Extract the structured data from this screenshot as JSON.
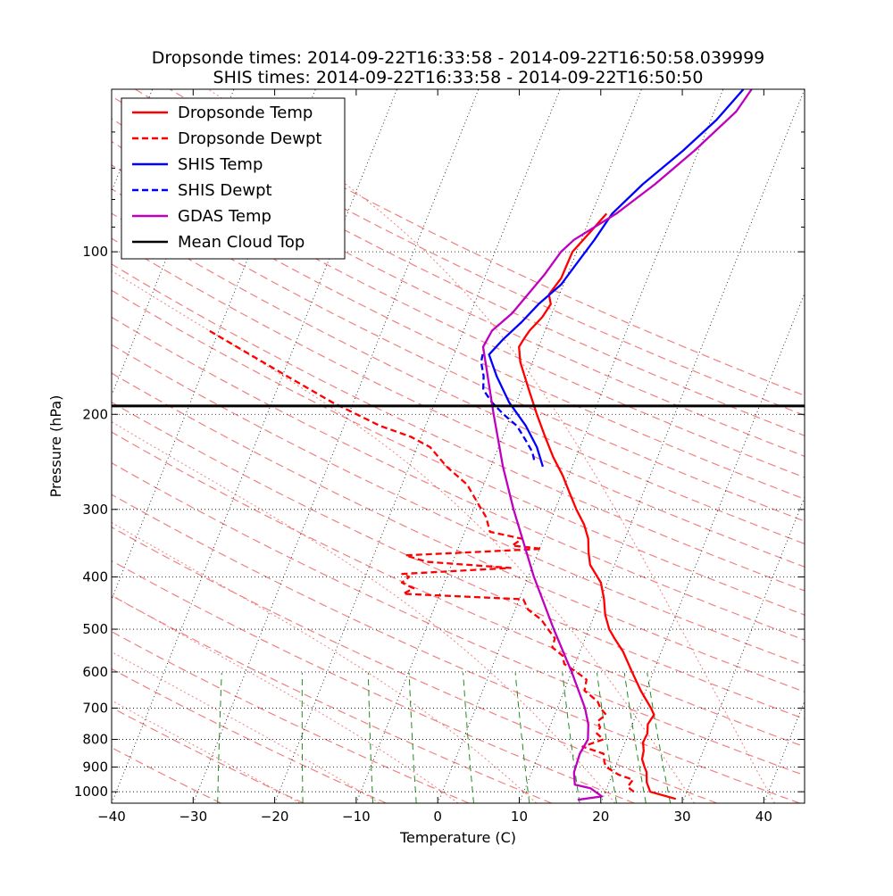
{
  "chart_data": {
    "type": "line",
    "subtype": "skew-T log-P diagram",
    "title_line1": "Dropsonde times: 2014-09-22T16:33:58 - 2014-09-22T16:50:58.039999",
    "title_line2": "SHIS times: 2014-09-22T16:33:58 - 2014-09-22T16:50:50",
    "xlabel": "Temperature (C)",
    "ylabel": "Pressure (hPa)",
    "xlim": [
      -40,
      45
    ],
    "ylim": [
      1050,
      50
    ],
    "x_ticks": [
      {
        "value": -40,
        "label": "−40"
      },
      {
        "value": -30,
        "label": "−30"
      },
      {
        "value": -20,
        "label": "−20"
      },
      {
        "value": -10,
        "label": "−10"
      },
      {
        "value": 0,
        "label": "0"
      },
      {
        "value": 10,
        "label": "10"
      },
      {
        "value": 20,
        "label": "20"
      },
      {
        "value": 30,
        "label": "30"
      },
      {
        "value": 40,
        "label": "40"
      }
    ],
    "y_ticks": [
      {
        "value": 100,
        "label": "100"
      },
      {
        "value": 200,
        "label": "200"
      },
      {
        "value": 300,
        "label": "300"
      },
      {
        "value": 400,
        "label": "400"
      },
      {
        "value": 500,
        "label": "500"
      },
      {
        "value": 600,
        "label": "600"
      },
      {
        "value": 700,
        "label": "700"
      },
      {
        "value": 800,
        "label": "800"
      },
      {
        "value": 900,
        "label": "900"
      },
      {
        "value": 1000,
        "label": "1000"
      }
    ],
    "legend": {
      "position": "upper-left",
      "entries": [
        {
          "label": "Dropsonde Temp",
          "color": "#ff0000",
          "style": "solid"
        },
        {
          "label": "Dropsonde Dewpt",
          "color": "#ff0000",
          "style": "dashed"
        },
        {
          "label": "SHIS Temp",
          "color": "#0000ff",
          "style": "solid"
        },
        {
          "label": "SHIS Dewpt",
          "color": "#0000ff",
          "style": "dashed"
        },
        {
          "label": "GDAS Temp",
          "color": "#bf00bf",
          "style": "solid"
        },
        {
          "label": "Mean Cloud Top",
          "color": "#000000",
          "style": "solid"
        }
      ]
    },
    "mean_cloud_top_hPa": 193,
    "series": [
      {
        "name": "Dropsonde Temp",
        "color": "#ff0000",
        "style": "solid",
        "points": [
          [
            1031,
            29.0
          ],
          [
            1000,
            25.5
          ],
          [
            960,
            24.6
          ],
          [
            920,
            24.1
          ],
          [
            900,
            23.6
          ],
          [
            870,
            22.9
          ],
          [
            840,
            22.7
          ],
          [
            810,
            22.2
          ],
          [
            780,
            22.3
          ],
          [
            750,
            21.9
          ],
          [
            720,
            22.2
          ],
          [
            700,
            21.5
          ],
          [
            650,
            19.4
          ],
          [
            600,
            17.4
          ],
          [
            550,
            15.3
          ],
          [
            520,
            13.6
          ],
          [
            500,
            12.5
          ],
          [
            470,
            11.3
          ],
          [
            440,
            10.4
          ],
          [
            410,
            9.2
          ],
          [
            380,
            7.0
          ],
          [
            360,
            6.2
          ],
          [
            340,
            5.5
          ],
          [
            320,
            4.3
          ],
          [
            300,
            2.6
          ],
          [
            280,
            1.0
          ],
          [
            260,
            -0.7
          ],
          [
            240,
            -2.8
          ],
          [
            220,
            -4.8
          ],
          [
            200,
            -6.9
          ],
          [
            180,
            -9.1
          ],
          [
            160,
            -11.5
          ],
          [
            150,
            -12.4
          ],
          [
            145,
            -12.2
          ],
          [
            140,
            -11.9
          ],
          [
            132,
            -11.0
          ],
          [
            125,
            -10.6
          ],
          [
            120,
            -11.3
          ],
          [
            112,
            -10.6
          ],
          [
            100,
            -10.5
          ],
          [
            92,
            -9.3
          ],
          [
            85,
            -8.2
          ]
        ]
      },
      {
        "name": "Dropsonde Dewpt",
        "color": "#ff0000",
        "style": "dashed",
        "points": [
          [
            1000,
            23.5
          ],
          [
            980,
            22.5
          ],
          [
            950,
            22.8
          ],
          [
            930,
            20.8
          ],
          [
            900,
            18.9
          ],
          [
            880,
            18.4
          ],
          [
            850,
            17.9
          ],
          [
            825,
            15.0
          ],
          [
            800,
            17.2
          ],
          [
            780,
            16.1
          ],
          [
            760,
            16.2
          ],
          [
            740,
            15.6
          ],
          [
            720,
            16.3
          ],
          [
            700,
            15.3
          ],
          [
            680,
            14.6
          ],
          [
            650,
            12.5
          ],
          [
            620,
            12.2
          ],
          [
            600,
            10.6
          ],
          [
            580,
            8.7
          ],
          [
            560,
            8.1
          ],
          [
            540,
            6.4
          ],
          [
            520,
            6.3
          ],
          [
            500,
            5.0
          ],
          [
            480,
            3.7
          ],
          [
            460,
            1.6
          ],
          [
            440,
            0.5
          ],
          [
            430,
            -14.5
          ],
          [
            420,
            -13.5
          ],
          [
            410,
            -15.2
          ],
          [
            400,
            -14.6
          ],
          [
            395,
            -15.6
          ],
          [
            385,
            -2.6
          ],
          [
            375,
            -13.2
          ],
          [
            365,
            -16.1
          ],
          [
            355,
            0.3
          ],
          [
            350,
            -3.5
          ],
          [
            340,
            -2.6
          ],
          [
            330,
            -6.9
          ],
          [
            310,
            -8.1
          ],
          [
            290,
            -10.0
          ],
          [
            270,
            -12.0
          ],
          [
            250,
            -15.4
          ],
          [
            230,
            -18.4
          ],
          [
            220,
            -21.3
          ],
          [
            210,
            -25.6
          ],
          [
            200,
            -29.0
          ],
          [
            190,
            -32.6
          ],
          [
            180,
            -35.9
          ],
          [
            170,
            -39.4
          ],
          [
            160,
            -43.1
          ],
          [
            150,
            -47.0
          ],
          [
            140,
            -51.2
          ]
        ]
      },
      {
        "name": "SHIS Temp",
        "color": "#0000ff",
        "style": "solid",
        "points": [
          [
            250,
            -3.6
          ],
          [
            230,
            -5.3
          ],
          [
            210,
            -7.7
          ],
          [
            190,
            -10.9
          ],
          [
            170,
            -13.7
          ],
          [
            155,
            -15.7
          ],
          [
            145,
            -14.7
          ],
          [
            135,
            -13.3
          ],
          [
            125,
            -12.1
          ],
          [
            115,
            -10.3
          ],
          [
            105,
            -9.4
          ],
          [
            95,
            -8.4
          ],
          [
            85,
            -7.5
          ],
          [
            75,
            -5.2
          ],
          [
            65,
            -1.9
          ],
          [
            57,
            0.7
          ],
          [
            50,
            2.5
          ]
        ]
      },
      {
        "name": "SHIS Dewpt",
        "color": "#0000ff",
        "style": "dashed",
        "points": [
          [
            243,
            -5.0
          ],
          [
            235,
            -5.6
          ],
          [
            225,
            -6.8
          ],
          [
            210,
            -8.8
          ],
          [
            200,
            -11.0
          ],
          [
            190,
            -13.0
          ],
          [
            180,
            -14.7
          ],
          [
            170,
            -15.3
          ],
          [
            160,
            -16.3
          ],
          [
            152,
            -16.6
          ]
        ]
      },
      {
        "name": "GDAS Temp",
        "color": "#bf00bf",
        "style": "solid",
        "points": [
          [
            1035,
            17.0
          ],
          [
            1020,
            19.8
          ],
          [
            985,
            18.0
          ],
          [
            970,
            15.9
          ],
          [
            920,
            15.2
          ],
          [
            850,
            15.0
          ],
          [
            800,
            15.3
          ],
          [
            750,
            14.6
          ],
          [
            700,
            13.4
          ],
          [
            600,
            10.0
          ],
          [
            500,
            5.7
          ],
          [
            400,
            0.7
          ],
          [
            300,
            -5.1
          ],
          [
            250,
            -8.5
          ],
          [
            200,
            -12.2
          ],
          [
            150,
            -16.8
          ],
          [
            140,
            -16.5
          ],
          [
            130,
            -14.9
          ],
          [
            110,
            -12.8
          ],
          [
            100,
            -11.9
          ],
          [
            95,
            -10.9
          ],
          [
            85,
            -7.0
          ],
          [
            75,
            -3.7
          ],
          [
            65,
            -0.5
          ],
          [
            55,
            2.7
          ],
          [
            50,
            3.5
          ]
        ]
      }
    ]
  }
}
